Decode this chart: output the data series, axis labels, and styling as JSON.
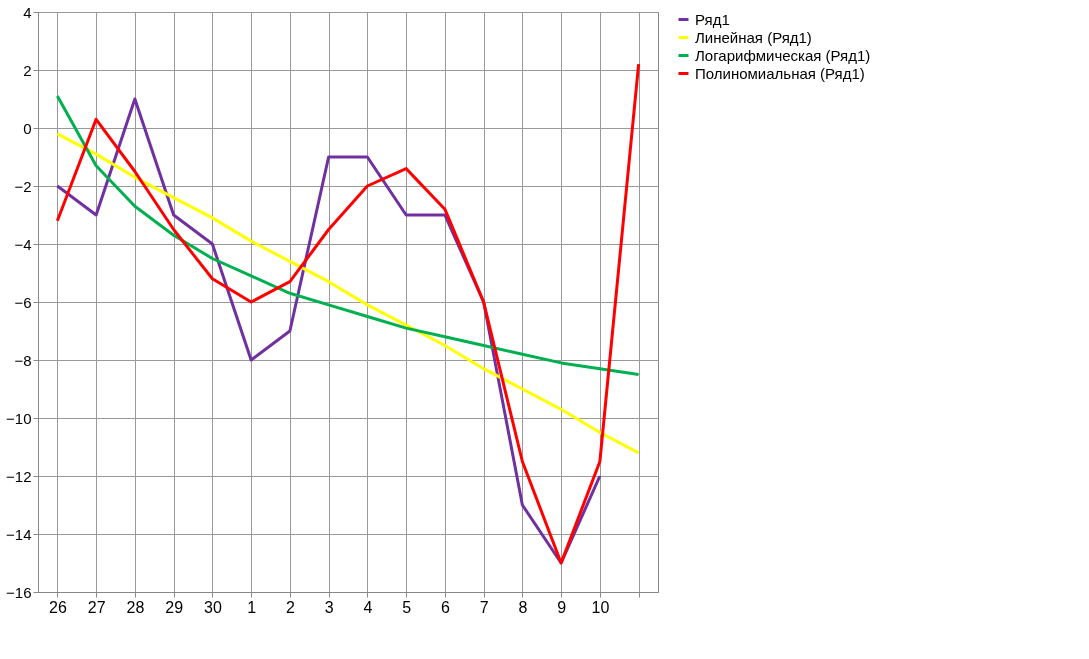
{
  "chart_data": {
    "type": "line",
    "categories": [
      "26",
      "27",
      "28",
      "29",
      "30",
      "1",
      "2",
      "3",
      "4",
      "5",
      "6",
      "7",
      "8",
      "9",
      "10",
      null
    ],
    "series": [
      {
        "name": "Ряд1",
        "color": "#7030a0",
        "values": [
          -2,
          -3,
          1,
          -3,
          -4,
          -8,
          -7,
          -1,
          -1,
          -3,
          -3,
          -6,
          -13,
          -15,
          -12,
          null
        ]
      },
      {
        "name": "Линейная (Ряд1)",
        "color": "#ffff00",
        "values": [
          -0.2,
          -0.9,
          -1.7,
          -2.4,
          -3.1,
          -3.9,
          -4.6,
          -5.3,
          -6.1,
          -6.8,
          -7.5,
          -8.3,
          -9.0,
          -9.7,
          -10.5,
          -11.2
        ]
      },
      {
        "name": "Логарифмическая (Ряд1)",
        "color": "#00b050",
        "values": [
          1.1,
          -1.3,
          -2.7,
          -3.7,
          -4.5,
          -5.1,
          -5.7,
          -6.1,
          -6.5,
          -6.9,
          -7.2,
          -7.5,
          -7.8,
          -8.1,
          -8.3,
          -8.5
        ]
      },
      {
        "name": "Полиномиальная (Ряд1)",
        "color": "#ff0000",
        "values": [
          -3.2,
          0.3,
          -1.5,
          -3.5,
          -5.2,
          -6.0,
          -5.3,
          -3.5,
          -2.0,
          -1.4,
          -2.8,
          -6.0,
          -11.5,
          -15.0,
          -11.5,
          2.2
        ]
      }
    ],
    "ylim": [
      -16,
      4
    ],
    "yticks": [
      -16,
      -14,
      -12,
      -10,
      -8,
      -6,
      -4,
      -2,
      0,
      2,
      4
    ],
    "grid": true,
    "legend": "right",
    "marker": "none",
    "line_style": "solid"
  }
}
